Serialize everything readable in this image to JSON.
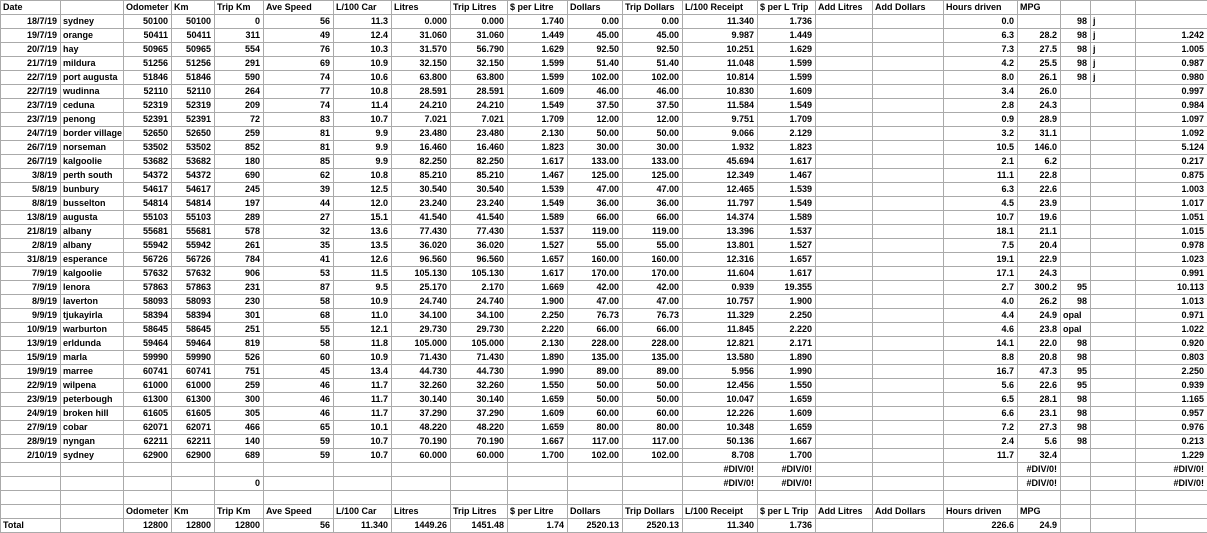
{
  "sheet": {
    "grid_color": "#aaaaaa",
    "text_color": "#000000",
    "column_count": 21,
    "header": [
      "Date",
      "",
      "Odometer",
      "Km",
      "Trip Km",
      "Ave Speed",
      "L/100 Car",
      "Litres",
      "Trip Litres",
      "$ per Litre",
      "Dollars",
      "Trip Dollars",
      "L/100 Receipt",
      "$ per L Trip",
      "Add Litres",
      "Add Dollars",
      "Hours driven",
      "MPG",
      "",
      "",
      ""
    ],
    "rows": [
      [
        "Date",
        "",
        "Odometer",
        "Km",
        "Trip Km",
        "Ave Speed",
        "L/100 Car",
        "Litres",
        "Trip Litres",
        "$ per Litre",
        "Dollars",
        "Trip Dollars",
        "L/100 Receipt",
        "$ per L Trip",
        "Add Litres",
        "Add Dollars",
        "Hours driven",
        "MPG",
        "",
        "",
        ""
      ],
      [
        "18/7/19",
        "sydney",
        "50100",
        "50100",
        "0",
        "56",
        "11.3",
        "0.000",
        "0.000",
        "1.740",
        "0.00",
        "0.00",
        "11.340",
        "1.736",
        "",
        "",
        "0.0",
        "",
        "98",
        "j",
        ""
      ],
      [
        "19/7/19",
        "orange",
        "50411",
        "50411",
        "311",
        "49",
        "12.4",
        "31.060",
        "31.060",
        "1.449",
        "45.00",
        "45.00",
        "9.987",
        "1.449",
        "",
        "",
        "6.3",
        "28.2",
        "98",
        "j",
        "1.242"
      ],
      [
        "20/7/19",
        "hay",
        "50965",
        "50965",
        "554",
        "76",
        "10.3",
        "31.570",
        "56.790",
        "1.629",
        "92.50",
        "92.50",
        "10.251",
        "1.629",
        "",
        "",
        "7.3",
        "27.5",
        "98",
        "j",
        "1.005"
      ],
      [
        "21/7/19",
        "mildura",
        "51256",
        "51256",
        "291",
        "69",
        "10.9",
        "32.150",
        "32.150",
        "1.599",
        "51.40",
        "51.40",
        "11.048",
        "1.599",
        "",
        "",
        "4.2",
        "25.5",
        "98",
        "j",
        "0.987"
      ],
      [
        "22/7/19",
        "port augusta",
        "51846",
        "51846",
        "590",
        "74",
        "10.6",
        "63.800",
        "63.800",
        "1.599",
        "102.00",
        "102.00",
        "10.814",
        "1.599",
        "",
        "",
        "8.0",
        "26.1",
        "98",
        "j",
        "0.980"
      ],
      [
        "22/7/19",
        "wudinna",
        "52110",
        "52110",
        "264",
        "77",
        "10.8",
        "28.591",
        "28.591",
        "1.609",
        "46.00",
        "46.00",
        "10.830",
        "1.609",
        "",
        "",
        "3.4",
        "26.0",
        "",
        "",
        "0.997"
      ],
      [
        "23/7/19",
        "ceduna",
        "52319",
        "52319",
        "209",
        "74",
        "11.4",
        "24.210",
        "24.210",
        "1.549",
        "37.50",
        "37.50",
        "11.584",
        "1.549",
        "",
        "",
        "2.8",
        "24.3",
        "",
        "",
        "0.984"
      ],
      [
        "23/7/19",
        "penong",
        "52391",
        "52391",
        "72",
        "83",
        "10.7",
        "7.021",
        "7.021",
        "1.709",
        "12.00",
        "12.00",
        "9.751",
        "1.709",
        "",
        "",
        "0.9",
        "28.9",
        "",
        "",
        "1.097"
      ],
      [
        "24/7/19",
        "border village",
        "52650",
        "52650",
        "259",
        "81",
        "9.9",
        "23.480",
        "23.480",
        "2.130",
        "50.00",
        "50.00",
        "9.066",
        "2.129",
        "",
        "",
        "3.2",
        "31.1",
        "",
        "",
        "1.092"
      ],
      [
        "26/7/19",
        "norseman",
        "53502",
        "53502",
        "852",
        "81",
        "9.9",
        "16.460",
        "16.460",
        "1.823",
        "30.00",
        "30.00",
        "1.932",
        "1.823",
        "",
        "",
        "10.5",
        "146.0",
        "",
        "",
        "5.124"
      ],
      [
        "26/7/19",
        "kalgoolie",
        "53682",
        "53682",
        "180",
        "85",
        "9.9",
        "82.250",
        "82.250",
        "1.617",
        "133.00",
        "133.00",
        "45.694",
        "1.617",
        "",
        "",
        "2.1",
        "6.2",
        "",
        "",
        "0.217"
      ],
      [
        "3/8/19",
        "perth south",
        "54372",
        "54372",
        "690",
        "62",
        "10.8",
        "85.210",
        "85.210",
        "1.467",
        "125.00",
        "125.00",
        "12.349",
        "1.467",
        "",
        "",
        "11.1",
        "22.8",
        "",
        "",
        "0.875"
      ],
      [
        "5/8/19",
        "bunbury",
        "54617",
        "54617",
        "245",
        "39",
        "12.5",
        "30.540",
        "30.540",
        "1.539",
        "47.00",
        "47.00",
        "12.465",
        "1.539",
        "",
        "",
        "6.3",
        "22.6",
        "",
        "",
        "1.003"
      ],
      [
        "8/8/19",
        "busselton",
        "54814",
        "54814",
        "197",
        "44",
        "12.0",
        "23.240",
        "23.240",
        "1.549",
        "36.00",
        "36.00",
        "11.797",
        "1.549",
        "",
        "",
        "4.5",
        "23.9",
        "",
        "",
        "1.017"
      ],
      [
        "13/8/19",
        "augusta",
        "55103",
        "55103",
        "289",
        "27",
        "15.1",
        "41.540",
        "41.540",
        "1.589",
        "66.00",
        "66.00",
        "14.374",
        "1.589",
        "",
        "",
        "10.7",
        "19.6",
        "",
        "",
        "1.051"
      ],
      [
        "21/8/19",
        "albany",
        "55681",
        "55681",
        "578",
        "32",
        "13.6",
        "77.430",
        "77.430",
        "1.537",
        "119.00",
        "119.00",
        "13.396",
        "1.537",
        "",
        "",
        "18.1",
        "21.1",
        "",
        "",
        "1.015"
      ],
      [
        "2/8/19",
        "albany",
        "55942",
        "55942",
        "261",
        "35",
        "13.5",
        "36.020",
        "36.020",
        "1.527",
        "55.00",
        "55.00",
        "13.801",
        "1.527",
        "",
        "",
        "7.5",
        "20.4",
        "",
        "",
        "0.978"
      ],
      [
        "31/8/19",
        "esperance",
        "56726",
        "56726",
        "784",
        "41",
        "12.6",
        "96.560",
        "96.560",
        "1.657",
        "160.00",
        "160.00",
        "12.316",
        "1.657",
        "",
        "",
        "19.1",
        "22.9",
        "",
        "",
        "1.023"
      ],
      [
        "7/9/19",
        "kalgoolie",
        "57632",
        "57632",
        "906",
        "53",
        "11.5",
        "105.130",
        "105.130",
        "1.617",
        "170.00",
        "170.00",
        "11.604",
        "1.617",
        "",
        "",
        "17.1",
        "24.3",
        "",
        "",
        "0.991"
      ],
      [
        "7/9/19",
        "lenora",
        "57863",
        "57863",
        "231",
        "87",
        "9.5",
        "25.170",
        "2.170",
        "1.669",
        "42.00",
        "42.00",
        "0.939",
        "19.355",
        "",
        "",
        "2.7",
        "300.2",
        "95",
        "",
        "10.113"
      ],
      [
        "8/9/19",
        "laverton",
        "58093",
        "58093",
        "230",
        "58",
        "10.9",
        "24.740",
        "24.740",
        "1.900",
        "47.00",
        "47.00",
        "10.757",
        "1.900",
        "",
        "",
        "4.0",
        "26.2",
        "98",
        "",
        "1.013"
      ],
      [
        "9/9/19",
        "tjukayirla",
        "58394",
        "58394",
        "301",
        "68",
        "11.0",
        "34.100",
        "34.100",
        "2.250",
        "76.73",
        "76.73",
        "11.329",
        "2.250",
        "",
        "",
        "4.4",
        "24.9",
        "opal",
        "",
        "0.971"
      ],
      [
        "10/9/19",
        "warburton",
        "58645",
        "58645",
        "251",
        "55",
        "12.1",
        "29.730",
        "29.730",
        "2.220",
        "66.00",
        "66.00",
        "11.845",
        "2.220",
        "",
        "",
        "4.6",
        "23.8",
        "opal",
        "",
        "1.022"
      ],
      [
        "13/9/19",
        "erldunda",
        "59464",
        "59464",
        "819",
        "58",
        "11.8",
        "105.000",
        "105.000",
        "2.130",
        "228.00",
        "228.00",
        "12.821",
        "2.171",
        "",
        "",
        "14.1",
        "22.0",
        "98",
        "",
        "0.920"
      ],
      [
        "15/9/19",
        "marla",
        "59990",
        "59990",
        "526",
        "60",
        "10.9",
        "71.430",
        "71.430",
        "1.890",
        "135.00",
        "135.00",
        "13.580",
        "1.890",
        "",
        "",
        "8.8",
        "20.8",
        "98",
        "",
        "0.803"
      ],
      [
        "19/9/19",
        "marree",
        "60741",
        "60741",
        "751",
        "45",
        "13.4",
        "44.730",
        "44.730",
        "1.990",
        "89.00",
        "89.00",
        "5.956",
        "1.990",
        "",
        "",
        "16.7",
        "47.3",
        "95",
        "",
        "2.250"
      ],
      [
        "22/9/19",
        "wilpena",
        "61000",
        "61000",
        "259",
        "46",
        "11.7",
        "32.260",
        "32.260",
        "1.550",
        "50.00",
        "50.00",
        "12.456",
        "1.550",
        "",
        "",
        "5.6",
        "22.6",
        "95",
        "",
        "0.939"
      ],
      [
        "23/9/19",
        "peterbough",
        "61300",
        "61300",
        "300",
        "46",
        "11.7",
        "30.140",
        "30.140",
        "1.659",
        "50.00",
        "50.00",
        "10.047",
        "1.659",
        "",
        "",
        "6.5",
        "28.1",
        "98",
        "",
        "1.165"
      ],
      [
        "24/9/19",
        "broken hill",
        "61605",
        "61605",
        "305",
        "46",
        "11.7",
        "37.290",
        "37.290",
        "1.609",
        "60.00",
        "60.00",
        "12.226",
        "1.609",
        "",
        "",
        "6.6",
        "23.1",
        "98",
        "",
        "0.957"
      ],
      [
        "27/9/19",
        "cobar",
        "62071",
        "62071",
        "466",
        "65",
        "10.1",
        "48.220",
        "48.220",
        "1.659",
        "80.00",
        "80.00",
        "10.348",
        "1.659",
        "",
        "",
        "7.2",
        "27.3",
        "98",
        "",
        "0.976"
      ],
      [
        "28/9/19",
        "nyngan",
        "62211",
        "62211",
        "140",
        "59",
        "10.7",
        "70.190",
        "70.190",
        "1.667",
        "117.00",
        "117.00",
        "50.136",
        "1.667",
        "",
        "",
        "2.4",
        "5.6",
        "98",
        "",
        "0.213"
      ],
      [
        "2/10/19",
        "sydney",
        "62900",
        "62900",
        "689",
        "59",
        "10.7",
        "60.000",
        "60.000",
        "1.700",
        "102.00",
        "102.00",
        "8.708",
        "1.700",
        "",
        "",
        "11.7",
        "32.4",
        "",
        "",
        "1.229"
      ],
      [
        "",
        "",
        "",
        "",
        "",
        "",
        "",
        "",
        "",
        "",
        "",
        "",
        "#DIV/0!",
        "#DIV/0!",
        "",
        "",
        "",
        "#DIV/0!",
        "",
        "",
        "#DIV/0!"
      ],
      [
        "",
        "",
        "",
        "",
        "0",
        "",
        "",
        "",
        "",
        "",
        "",
        "",
        "#DIV/0!",
        "#DIV/0!",
        "",
        "",
        "",
        "#DIV/0!",
        "",
        "",
        "#DIV/0!"
      ],
      [
        "",
        "",
        "",
        "",
        "",
        "",
        "",
        "",
        "",
        "",
        "",
        "",
        "",
        "",
        "",
        "",
        "",
        "",
        "",
        "",
        ""
      ],
      [
        "",
        "",
        "Odometer",
        "Km",
        "Trip Km",
        "Ave Speed",
        "L/100 Car",
        "Litres",
        "Trip Litres",
        "$ per Litre",
        "Dollars",
        "Trip Dollars",
        "L/100 Receipt",
        "$ per L Trip",
        "Add Litres",
        "Add Dollars",
        "Hours driven",
        "MPG",
        "",
        "",
        ""
      ],
      [
        "Total",
        "",
        "12800",
        "12800",
        "12800",
        "56",
        "11.340",
        "1449.26",
        "1451.48",
        "1.74",
        "2520.13",
        "2520.13",
        "11.340",
        "1.736",
        "",
        "",
        "226.6",
        "24.9",
        "",
        "",
        ""
      ]
    ],
    "totals": {
      "label": "Total",
      "trip_km": "12800",
      "ave_speed": "56",
      "l100_car": "11.340",
      "litres": "1449.26",
      "trip_litres": "1451.48",
      "dollar_per_litre": "1.74",
      "dollars": "2520.13",
      "trip_dollars": "2520.13",
      "l100_receipt": "11.340",
      "dollar_per_l_trip": "1.736",
      "hours_driven": "226.6",
      "mpg": "24.9"
    }
  }
}
